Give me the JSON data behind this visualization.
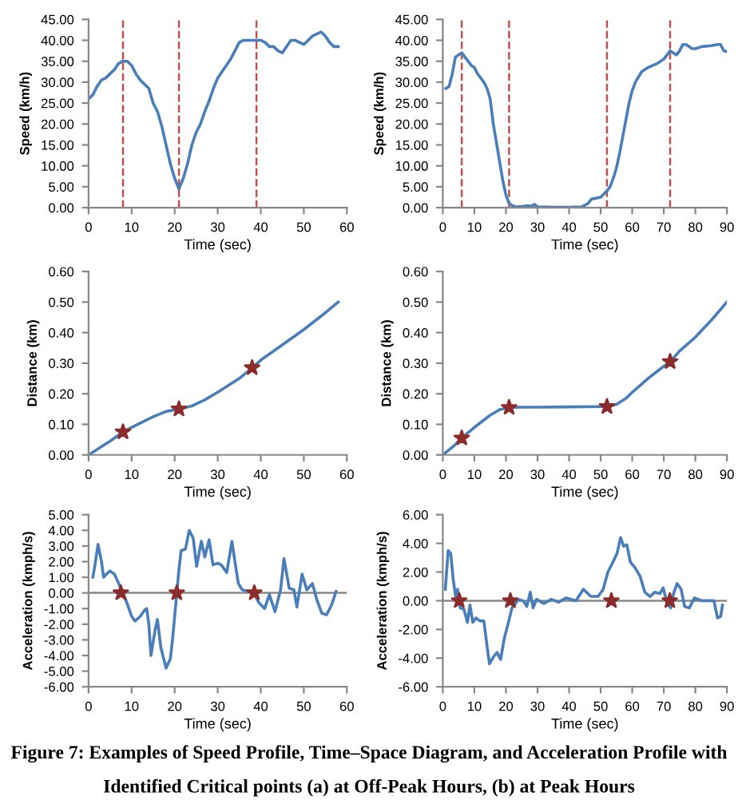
{
  "chart_data": [
    {
      "type": "line",
      "xlabel": "Time (sec)",
      "ylabel": "Speed (km/h)",
      "xlim": [
        0,
        60
      ],
      "xticks": [
        0,
        10,
        20,
        30,
        40,
        50,
        60
      ],
      "ylim": [
        0,
        45
      ],
      "yticks": [
        {
          "value": 0,
          "label": "0.00"
        },
        {
          "value": 5,
          "label": "5.00"
        },
        {
          "value": 10,
          "label": "10.00"
        },
        {
          "value": 15,
          "label": "15.00"
        },
        {
          "value": 20,
          "label": "20.00"
        },
        {
          "value": 25,
          "label": "25.00"
        },
        {
          "value": 30,
          "label": "30.00"
        },
        {
          "value": 35,
          "label": "35.00"
        },
        {
          "value": 40,
          "label": "40.00"
        },
        {
          "value": 45,
          "label": "45.00"
        }
      ],
      "grid": false,
      "legend": false,
      "x": [
        0,
        1,
        2,
        3,
        4,
        5,
        6,
        7,
        8,
        9,
        10,
        11,
        12,
        13,
        14,
        15,
        16,
        17,
        18,
        19,
        20,
        21,
        22,
        23,
        24,
        25,
        26,
        27,
        28,
        29,
        30,
        31,
        32,
        33,
        34,
        35,
        36,
        37,
        38,
        39,
        40,
        41,
        42,
        43,
        44,
        45,
        46,
        47,
        48,
        49,
        50,
        51,
        52,
        53,
        54,
        55,
        56,
        57,
        58
      ],
      "series": [
        {
          "color": "#4a7ebb",
          "values": [
            26,
            27,
            29,
            30.5,
            31,
            32,
            33,
            34.5,
            35,
            35,
            34,
            32,
            30.5,
            29.5,
            28.5,
            25,
            23,
            19.5,
            15,
            10.5,
            7,
            4.5,
            7,
            10.5,
            15,
            18,
            20,
            23,
            25.5,
            28.5,
            31,
            32.5,
            34,
            35.5,
            37.5,
            39.5,
            40,
            40,
            40,
            40,
            40,
            39.5,
            38.5,
            38.5,
            37.5,
            37,
            38.5,
            40,
            40,
            39.5,
            39,
            40,
            41,
            41.5,
            42,
            41,
            39.5,
            38.5,
            38.5
          ]
        }
      ],
      "ref_lines": [
        {
          "axis": "x",
          "value": 8,
          "color": "#c0504d",
          "line_style": "dashed"
        },
        {
          "axis": "x",
          "value": 21,
          "color": "#c0504d",
          "line_style": "dashed"
        },
        {
          "axis": "x",
          "value": 39,
          "color": "#c0504d",
          "line_style": "dashed"
        }
      ]
    },
    {
      "type": "line",
      "xlabel": "Time (sec)",
      "ylabel": "Speed (km/h)",
      "xlim": [
        0,
        90
      ],
      "xticks": [
        0,
        10,
        20,
        30,
        40,
        50,
        60,
        70,
        80,
        90
      ],
      "ylim": [
        0,
        45
      ],
      "yticks": [
        {
          "value": 0,
          "label": "0.00"
        },
        {
          "value": 5,
          "label": "5.00"
        },
        {
          "value": 10,
          "label": "10.00"
        },
        {
          "value": 15,
          "label": "15.00"
        },
        {
          "value": 20,
          "label": "20.00"
        },
        {
          "value": 25,
          "label": "25.00"
        },
        {
          "value": 30,
          "label": "30.00"
        },
        {
          "value": 35,
          "label": "35.00"
        },
        {
          "value": 40,
          "label": "40.00"
        },
        {
          "value": 45,
          "label": "45.00"
        }
      ],
      "grid": false,
      "legend": false,
      "x": [
        1,
        2,
        3,
        4,
        5,
        6,
        7,
        8,
        9,
        10,
        11,
        12,
        13,
        14,
        15,
        16,
        17,
        18,
        19,
        20,
        21,
        22,
        23,
        25,
        27,
        28,
        29,
        30,
        35,
        40,
        44,
        46,
        47,
        50,
        52,
        53,
        54,
        55,
        56,
        57,
        58,
        59,
        60,
        61,
        63,
        65,
        68,
        70,
        71,
        72,
        73,
        74,
        75,
        76,
        77,
        78,
        79,
        80,
        82,
        85,
        87,
        88,
        89,
        90
      ],
      "series": [
        {
          "color": "#4a7ebb",
          "values": [
            28.5,
            29,
            32,
            36,
            36.5,
            37,
            36,
            35,
            34,
            33.5,
            32,
            31,
            30,
            28.5,
            26,
            20,
            15.5,
            11,
            6.5,
            3,
            1,
            0.5,
            0.2,
            0.3,
            0.5,
            0.3,
            0.8,
            0.2,
            0.1,
            0.1,
            0.2,
            1,
            2,
            2.5,
            4,
            5,
            7,
            9.5,
            13,
            17,
            21,
            25,
            28,
            30,
            32.5,
            33.5,
            34.5,
            35.5,
            36.5,
            37.5,
            37,
            36.5,
            37.5,
            39,
            39,
            38.5,
            38,
            38,
            38.5,
            38.7,
            39,
            39,
            37.5,
            37.3
          ]
        }
      ],
      "ref_lines": [
        {
          "axis": "x",
          "value": 6,
          "color": "#c0504d",
          "line_style": "dashed"
        },
        {
          "axis": "x",
          "value": 21,
          "color": "#c0504d",
          "line_style": "dashed"
        },
        {
          "axis": "x",
          "value": 52,
          "color": "#c0504d",
          "line_style": "dashed"
        },
        {
          "axis": "x",
          "value": 72,
          "color": "#c0504d",
          "line_style": "dashed"
        }
      ]
    },
    {
      "type": "line",
      "xlabel": "Time (sec)",
      "ylabel": "Distance (km)",
      "xlim": [
        0,
        60
      ],
      "xticks": [
        0,
        10,
        20,
        30,
        40,
        50,
        60
      ],
      "ylim": [
        0,
        0.6
      ],
      "yticks": [
        {
          "value": 0,
          "label": "0.00"
        },
        {
          "value": 0.1,
          "label": "0.10"
        },
        {
          "value": 0.2,
          "label": "0.20"
        },
        {
          "value": 0.3,
          "label": "0.30"
        },
        {
          "value": 0.4,
          "label": "0.40"
        },
        {
          "value": 0.5,
          "label": "0.50"
        },
        {
          "value": 0.6,
          "label": "0.60"
        }
      ],
      "grid": false,
      "legend": false,
      "series": [
        {
          "type": "line",
          "color": "#4a7ebb",
          "x": [
            0,
            5,
            8,
            10,
            15,
            18,
            21,
            24,
            27,
            30,
            35,
            38,
            40,
            45,
            50,
            55,
            58
          ],
          "values": [
            0,
            0.045,
            0.075,
            0.09,
            0.125,
            0.142,
            0.15,
            0.16,
            0.18,
            0.205,
            0.25,
            0.285,
            0.31,
            0.36,
            0.41,
            0.465,
            0.5
          ]
        },
        {
          "type": "scatter",
          "marker": "star",
          "color": "#8b2b2b",
          "x": [
            8,
            21,
            38
          ],
          "values": [
            0.075,
            0.15,
            0.285
          ]
        }
      ]
    },
    {
      "type": "line",
      "xlabel": "Time (sec)",
      "ylabel": "Distance (km)",
      "xlim": [
        0,
        90
      ],
      "xticks": [
        0,
        10,
        20,
        30,
        40,
        50,
        60,
        70,
        80,
        90
      ],
      "ylim": [
        0,
        0.6
      ],
      "yticks": [
        {
          "value": 0,
          "label": "0.00"
        },
        {
          "value": 0.1,
          "label": "0.10"
        },
        {
          "value": 0.2,
          "label": "0.20"
        },
        {
          "value": 0.3,
          "label": "0.30"
        },
        {
          "value": 0.4,
          "label": "0.40"
        },
        {
          "value": 0.5,
          "label": "0.50"
        },
        {
          "value": 0.6,
          "label": "0.60"
        }
      ],
      "grid": false,
      "legend": false,
      "series": [
        {
          "type": "line",
          "color": "#4a7ebb",
          "x": [
            0,
            3,
            6,
            10,
            15,
            18,
            21,
            25,
            30,
            40,
            50,
            52,
            55,
            58,
            60,
            65,
            70,
            72,
            75,
            80,
            85,
            90
          ],
          "values": [
            0,
            0.025,
            0.055,
            0.09,
            0.13,
            0.148,
            0.155,
            0.156,
            0.156,
            0.157,
            0.158,
            0.158,
            0.165,
            0.185,
            0.205,
            0.25,
            0.29,
            0.305,
            0.34,
            0.385,
            0.44,
            0.5
          ]
        },
        {
          "type": "scatter",
          "marker": "star",
          "color": "#8b2b2b",
          "x": [
            6,
            21,
            52,
            72
          ],
          "values": [
            0.055,
            0.155,
            0.158,
            0.305
          ]
        }
      ]
    },
    {
      "type": "line",
      "xlabel": "Time (sec)",
      "ylabel": "Acceleration (kmph/s)",
      "xlim": [
        0,
        60
      ],
      "xticks": [
        0,
        10,
        20,
        30,
        40,
        50,
        60
      ],
      "ylim": [
        -6,
        5
      ],
      "yticks": [
        {
          "value": -6,
          "label": "-6.00"
        },
        {
          "value": -5,
          "label": "-5.00"
        },
        {
          "value": -4,
          "label": "-4.00"
        },
        {
          "value": -3,
          "label": "-3.00"
        },
        {
          "value": -2,
          "label": "-2.00"
        },
        {
          "value": -1,
          "label": "-1.00"
        },
        {
          "value": 0,
          "label": "0.00"
        },
        {
          "value": 1,
          "label": "1.00"
        },
        {
          "value": 2,
          "label": "2.00"
        },
        {
          "value": 3,
          "label": "3.00"
        },
        {
          "value": 4,
          "label": "4.00"
        },
        {
          "value": 5,
          "label": "5.00"
        }
      ],
      "grid": false,
      "legend": false,
      "series": [
        {
          "type": "line",
          "color": "#4a7ebb",
          "x": [
            1,
            1.5,
            2.2,
            3,
            3.5,
            4.5,
            5,
            6,
            7,
            8,
            9,
            10,
            10.8,
            12,
            13,
            13.5,
            14,
            14.5,
            15.5,
            16,
            16.8,
            18,
            19,
            19.5,
            20.5,
            21,
            21.5,
            22.5,
            23.4,
            24.3,
            25.1,
            26.2,
            27,
            28,
            28.9,
            30,
            30.8,
            32.1,
            33.3,
            34,
            34.8,
            35.7,
            37.3,
            38.4,
            39.5,
            40.9,
            42,
            43.3,
            44.6,
            45.4,
            46.6,
            47.7,
            48.4,
            49.6,
            50.7,
            52,
            53.1,
            54.2,
            55.3,
            56.4,
            57.5
          ],
          "values": [
            1.0,
            1.8,
            3.1,
            2.0,
            1.0,
            1.3,
            1.4,
            1.2,
            0.6,
            0.0,
            -0.7,
            -1.5,
            -1.8,
            -1.5,
            -1.1,
            -1.0,
            -2.0,
            -4.0,
            -2.3,
            -1.7,
            -3.5,
            -4.8,
            -4.2,
            -3.0,
            0.0,
            1.5,
            2.7,
            2.8,
            4.0,
            3.5,
            1.7,
            3.3,
            2.3,
            3.4,
            1.8,
            1.9,
            1.8,
            1.3,
            3.3,
            2.0,
            0.6,
            0.2,
            0.1,
            0.0,
            -0.6,
            -1.0,
            -0.1,
            -1.2,
            0.2,
            2.2,
            0.3,
            0.2,
            -0.9,
            1.2,
            0.2,
            0.6,
            -0.5,
            -1.3,
            -1.4,
            -0.8,
            0.1
          ]
        },
        {
          "type": "scatter",
          "marker": "star",
          "color": "#8b2b2b",
          "x": [
            7.5,
            20.5,
            38.5
          ],
          "values": [
            0,
            0,
            0
          ]
        }
      ],
      "ref_lines": [
        {
          "axis": "y",
          "value": 0,
          "color": "#888888",
          "line_style": "solid"
        }
      ]
    },
    {
      "type": "line",
      "xlabel": "Time (sec)",
      "ylabel": "Acceleration (kmph/s)",
      "xlim": [
        0,
        90
      ],
      "xticks": [
        0,
        10,
        20,
        30,
        40,
        50,
        60,
        70,
        80,
        90
      ],
      "ylim": [
        -6,
        6
      ],
      "yticks": [
        {
          "value": -6,
          "label": "-6.00"
        },
        {
          "value": -4,
          "label": "-4.00"
        },
        {
          "value": -2,
          "label": "-2.00"
        },
        {
          "value": 0,
          "label": "0.00"
        },
        {
          "value": 2,
          "label": "2.00"
        },
        {
          "value": 4,
          "label": "4.00"
        },
        {
          "value": 6,
          "label": "6.00"
        }
      ],
      "grid": false,
      "legend": false,
      "series": [
        {
          "type": "line",
          "color": "#4a7ebb",
          "x": [
            0.8,
            1.7,
            2.5,
            3.3,
            4.1,
            4.7,
            5.5,
            6.7,
            7.8,
            8.6,
            9.5,
            10.5,
            11.7,
            13,
            14.1,
            14.8,
            16.1,
            17.2,
            18.3,
            19.5,
            20.8,
            21.9,
            23,
            23.9,
            25.5,
            26.6,
            27.7,
            28.6,
            29.7,
            32,
            34.4,
            36.7,
            39,
            42.2,
            44.5,
            46.9,
            49.2,
            50.8,
            52.3,
            53.9,
            55.2,
            56.3,
            57.3,
            58.3,
            59.4,
            60.9,
            62.5,
            64,
            65.6,
            67.2,
            68.8,
            69.8,
            71.1,
            72.2,
            73.1,
            74.2,
            75.5,
            76.6,
            78.1,
            79.7,
            82,
            85.9,
            87,
            88,
            88.6
          ],
          "values": [
            0.8,
            3.5,
            3.3,
            1.5,
            0.2,
            0.8,
            -0.5,
            -0.6,
            -1.5,
            -0.3,
            -1.5,
            -1.2,
            -1.4,
            -1.4,
            -3.3,
            -4.4,
            -3.9,
            -3.6,
            -4.1,
            -2.6,
            -1.5,
            -0.5,
            -0.2,
            0.1,
            0,
            -0.4,
            0.6,
            -0.5,
            0.1,
            -0.2,
            0.1,
            -0.1,
            0.2,
            0,
            0.8,
            0.3,
            0.3,
            0.8,
            2.0,
            2.7,
            3.3,
            4.4,
            3.8,
            3.9,
            2.7,
            2.3,
            1.7,
            0.6,
            0.3,
            0.6,
            0.5,
            0.9,
            -0.2,
            -0.5,
            0.5,
            1.2,
            0.8,
            -0.4,
            -0.5,
            0.2,
            0,
            0,
            -1.2,
            -1.1,
            -0.3
          ]
        },
        {
          "type": "scatter",
          "marker": "star",
          "color": "#8b2b2b",
          "x": [
            5.2,
            21.4,
            53.4,
            71.9
          ],
          "values": [
            0,
            0,
            0,
            0
          ]
        }
      ],
      "ref_lines": [
        {
          "axis": "y",
          "value": 0,
          "color": "#888888",
          "line_style": "solid"
        }
      ],
      "annotations": [
        "Figure 7: Examples of Speed Profile, Time–Space Diagram, and Acceleration Profile with",
        "Identified Critical points (a) at Off-Peak Hours, (b) at Peak Hours"
      ]
    }
  ]
}
